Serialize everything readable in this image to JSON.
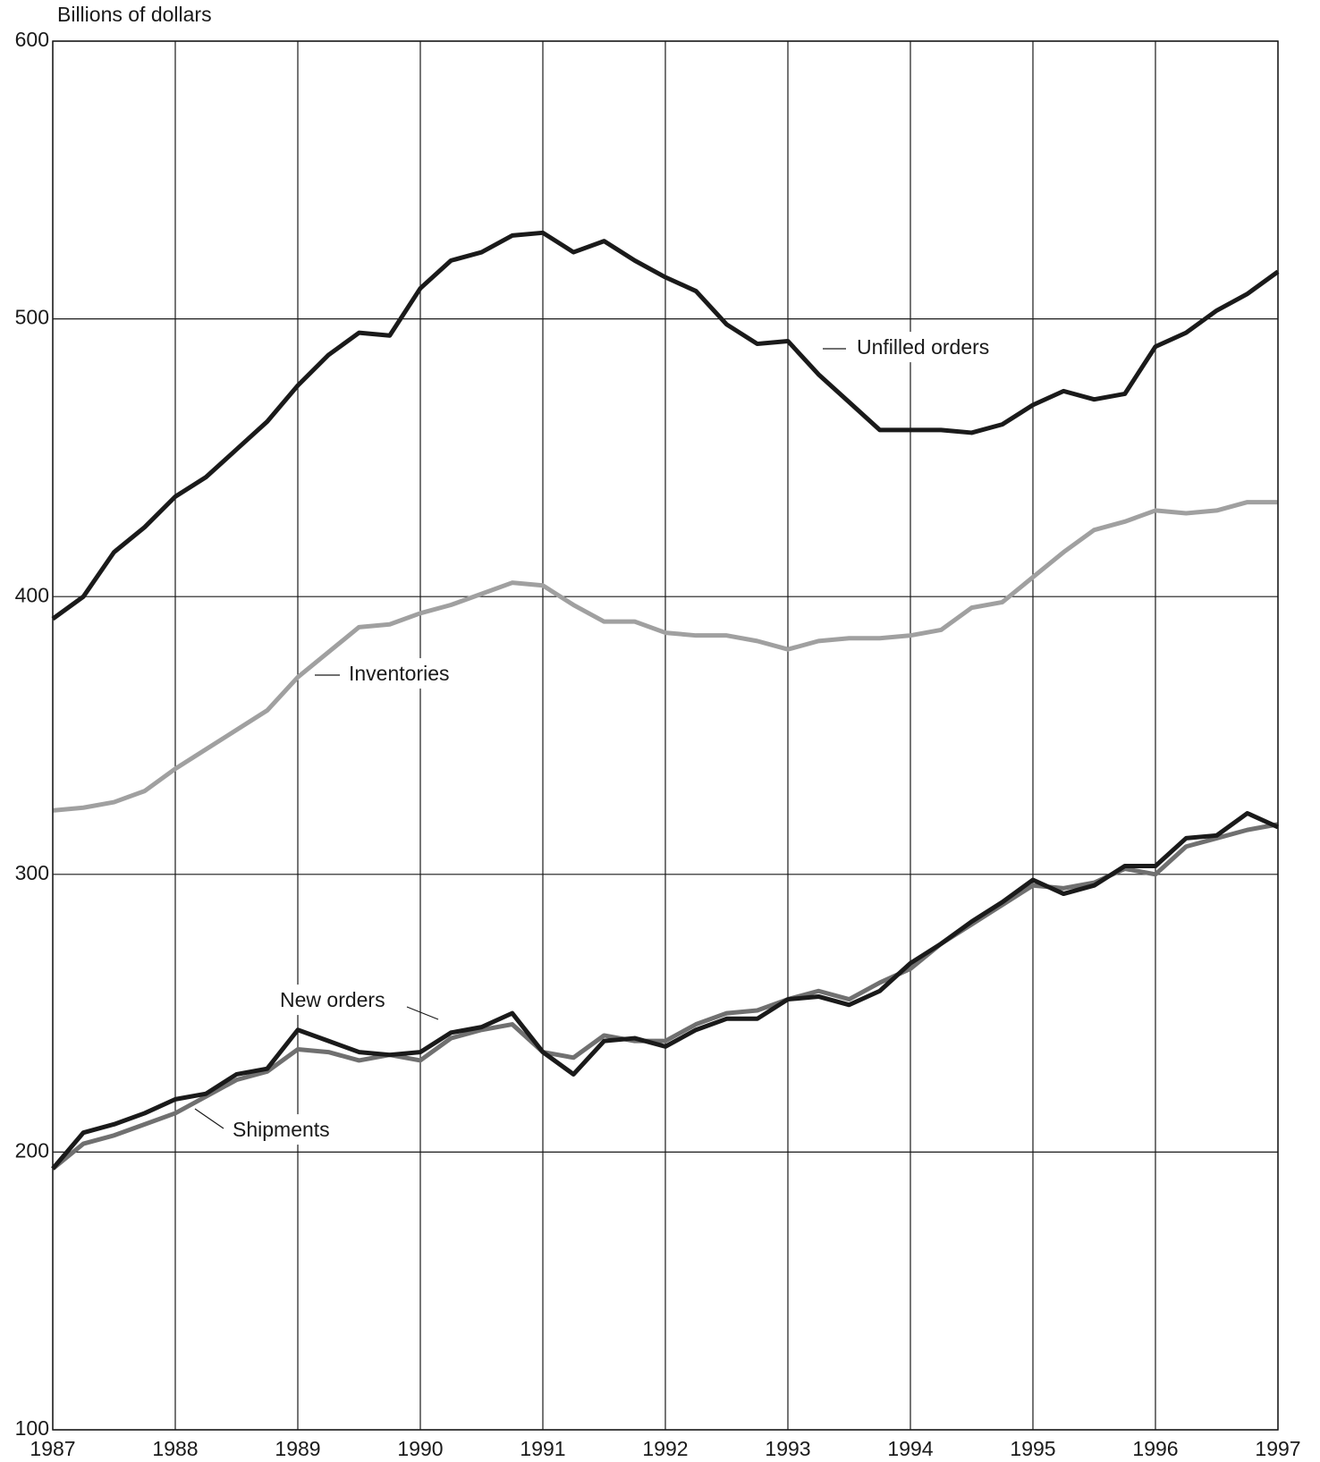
{
  "chart_data": {
    "type": "line",
    "y_label": "Billions of dollars",
    "x": [
      1987,
      1987.25,
      1987.5,
      1987.75,
      1988,
      1988.25,
      1988.5,
      1988.75,
      1989,
      1989.25,
      1989.5,
      1989.75,
      1990,
      1990.25,
      1990.5,
      1990.75,
      1991,
      1991.25,
      1991.5,
      1991.75,
      1992,
      1992.25,
      1992.5,
      1992.75,
      1993,
      1993.25,
      1993.5,
      1993.75,
      1994,
      1994.25,
      1994.5,
      1994.75,
      1995,
      1995.25,
      1995.5,
      1995.75,
      1996,
      1996.25,
      1996.5,
      1996.75,
      1997
    ],
    "series": [
      {
        "name": "Unfilled orders",
        "color": "#1a1a1a",
        "values": [
          392,
          400,
          416,
          425,
          436,
          443,
          453,
          463,
          476,
          487,
          495,
          494,
          511,
          521,
          524,
          530,
          531,
          524,
          528,
          521,
          515,
          510,
          498,
          491,
          492,
          480,
          470,
          460,
          460,
          460,
          459,
          462,
          469,
          474,
          471,
          473,
          490,
          495,
          503,
          509,
          517
        ]
      },
      {
        "name": "Inventories",
        "color": "#a0a0a0",
        "values": [
          323,
          324,
          326,
          330,
          338,
          345,
          352,
          359,
          371,
          380,
          389,
          390,
          394,
          397,
          401,
          405,
          404,
          397,
          391,
          391,
          387,
          386,
          386,
          384,
          381,
          384,
          385,
          385,
          386,
          388,
          396,
          398,
          407,
          416,
          424,
          427,
          431,
          430,
          431,
          434,
          434
        ]
      },
      {
        "name": "Shipments",
        "color": "#707070",
        "values": [
          194,
          203,
          206,
          210,
          214,
          220,
          226,
          229,
          237,
          236,
          233,
          235,
          233,
          241,
          244,
          246,
          236,
          234,
          242,
          240,
          240,
          246,
          250,
          251,
          255,
          258,
          255,
          261,
          266,
          275,
          282,
          289,
          296,
          295,
          297,
          302,
          300,
          310,
          313,
          316,
          318
        ]
      },
      {
        "name": "New orders",
        "color": "#1a1a1a",
        "values": [
          194,
          207,
          210,
          214,
          219,
          221,
          228,
          230,
          244,
          240,
          236,
          235,
          236,
          243,
          245,
          250,
          236,
          228,
          240,
          241,
          238,
          244,
          248,
          248,
          255,
          256,
          253,
          258,
          268,
          275,
          283,
          290,
          298,
          293,
          296,
          303,
          303,
          313,
          314,
          322,
          317
        ]
      }
    ],
    "xlim": [
      1987,
      1997
    ],
    "xticks": [
      1987,
      1988,
      1989,
      1990,
      1991,
      1992,
      1993,
      1994,
      1995,
      1996,
      1997
    ],
    "ylim": [
      100,
      600
    ],
    "yticks": [
      100,
      200,
      300,
      400,
      500,
      600
    ],
    "grid": true
  }
}
